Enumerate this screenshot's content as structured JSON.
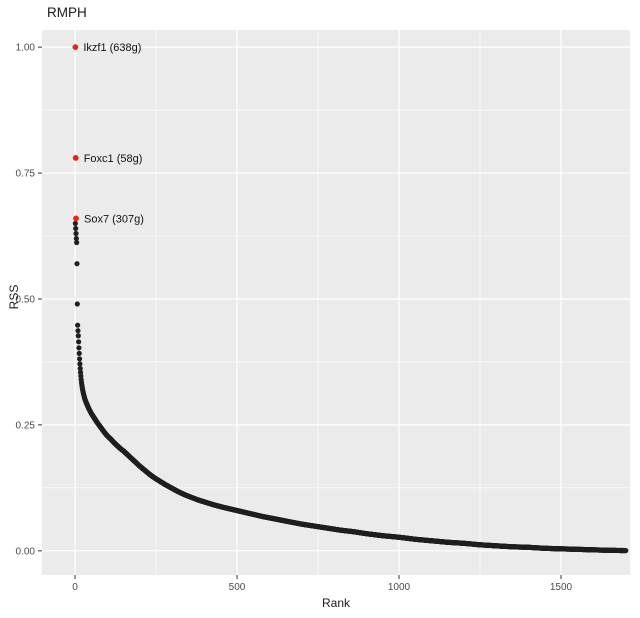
{
  "chart_data": {
    "type": "scatter",
    "title": "RMPH",
    "xlabel": "Rank",
    "ylabel": "RSS",
    "xlim": [
      -102,
      1713
    ],
    "ylim": [
      -0.048,
      1.034
    ],
    "x_ticks": [
      0,
      500,
      1000,
      1500
    ],
    "x_tick_labels": [
      "0",
      "500",
      "1000",
      "1500"
    ],
    "x_minor_ticks": [
      250,
      750,
      1250
    ],
    "y_ticks": [
      0,
      0.25,
      0.5,
      0.75,
      1
    ],
    "y_tick_labels": [
      "0.00",
      "0.25",
      "0.50",
      "0.75",
      "1.00"
    ],
    "y_minor_ticks": [
      0.125,
      0.375,
      0.625,
      0.875
    ],
    "panel_bg": "#ebebeb",
    "grid_color": "#ffffff",
    "point_color": "#1f1f1f",
    "highlight_color": "#ed2115",
    "tick_text_color": "#4d4d4d",
    "axis_line_color": "#333333",
    "label_text_color": "#111111",
    "n_points": 1700,
    "highlighted_points": [
      {
        "label": "Ikzf1 (638g)",
        "rank": 1,
        "rss": 1.0
      },
      {
        "label": "Foxc1 (58g)",
        "rank": 2,
        "rss": 0.78
      },
      {
        "label": "Sox7 (307g)",
        "rank": 3,
        "rss": 0.66
      }
    ],
    "curve_anchors": [
      [
        1,
        0.65
      ],
      [
        2,
        0.64
      ],
      [
        3,
        0.63
      ],
      [
        4,
        0.62
      ],
      [
        5,
        0.612
      ],
      [
        6,
        0.57
      ],
      [
        7,
        0.49
      ],
      [
        8,
        0.448
      ],
      [
        9,
        0.437
      ],
      [
        10,
        0.427
      ],
      [
        11,
        0.415
      ],
      [
        12,
        0.403
      ],
      [
        13,
        0.392
      ],
      [
        14,
        0.381
      ],
      [
        15,
        0.371
      ],
      [
        16,
        0.362
      ],
      [
        17,
        0.354
      ],
      [
        18,
        0.347
      ],
      [
        19,
        0.34
      ],
      [
        20,
        0.334
      ],
      [
        22,
        0.325
      ],
      [
        24,
        0.318
      ],
      [
        26,
        0.312
      ],
      [
        28,
        0.307
      ],
      [
        30,
        0.302
      ],
      [
        34,
        0.295
      ],
      [
        38,
        0.289
      ],
      [
        42,
        0.283
      ],
      [
        46,
        0.278
      ],
      [
        50,
        0.273
      ],
      [
        55,
        0.268
      ],
      [
        60,
        0.263
      ],
      [
        68,
        0.255
      ],
      [
        76,
        0.248
      ],
      [
        84,
        0.241
      ],
      [
        92,
        0.234
      ],
      [
        100,
        0.228
      ],
      [
        110,
        0.222
      ],
      [
        120,
        0.215
      ],
      [
        130,
        0.209
      ],
      [
        140,
        0.203
      ],
      [
        150,
        0.198
      ],
      [
        160,
        0.192
      ],
      [
        170,
        0.186
      ],
      [
        180,
        0.18
      ],
      [
        190,
        0.174
      ],
      [
        200,
        0.168
      ],
      [
        215,
        0.16
      ],
      [
        230,
        0.152
      ],
      [
        245,
        0.145
      ],
      [
        260,
        0.139
      ],
      [
        280,
        0.131
      ],
      [
        300,
        0.124
      ],
      [
        320,
        0.117
      ],
      [
        340,
        0.111
      ],
      [
        360,
        0.106
      ],
      [
        380,
        0.101
      ],
      [
        400,
        0.097
      ],
      [
        430,
        0.091
      ],
      [
        460,
        0.086
      ],
      [
        500,
        0.08
      ],
      [
        540,
        0.074
      ],
      [
        580,
        0.068
      ],
      [
        620,
        0.063
      ],
      [
        660,
        0.058
      ],
      [
        700,
        0.053
      ],
      [
        740,
        0.049
      ],
      [
        780,
        0.045
      ],
      [
        820,
        0.041
      ],
      [
        860,
        0.038
      ],
      [
        900,
        0.034
      ],
      [
        950,
        0.03
      ],
      [
        1000,
        0.027
      ],
      [
        1050,
        0.023
      ],
      [
        1100,
        0.02
      ],
      [
        1150,
        0.017
      ],
      [
        1200,
        0.015
      ],
      [
        1250,
        0.012
      ],
      [
        1300,
        0.01
      ],
      [
        1350,
        0.008
      ],
      [
        1400,
        0.007
      ],
      [
        1450,
        0.005
      ],
      [
        1500,
        0.004
      ],
      [
        1550,
        0.003
      ],
      [
        1600,
        0.002
      ],
      [
        1650,
        0.001
      ],
      [
        1700,
        0.0005
      ]
    ]
  }
}
